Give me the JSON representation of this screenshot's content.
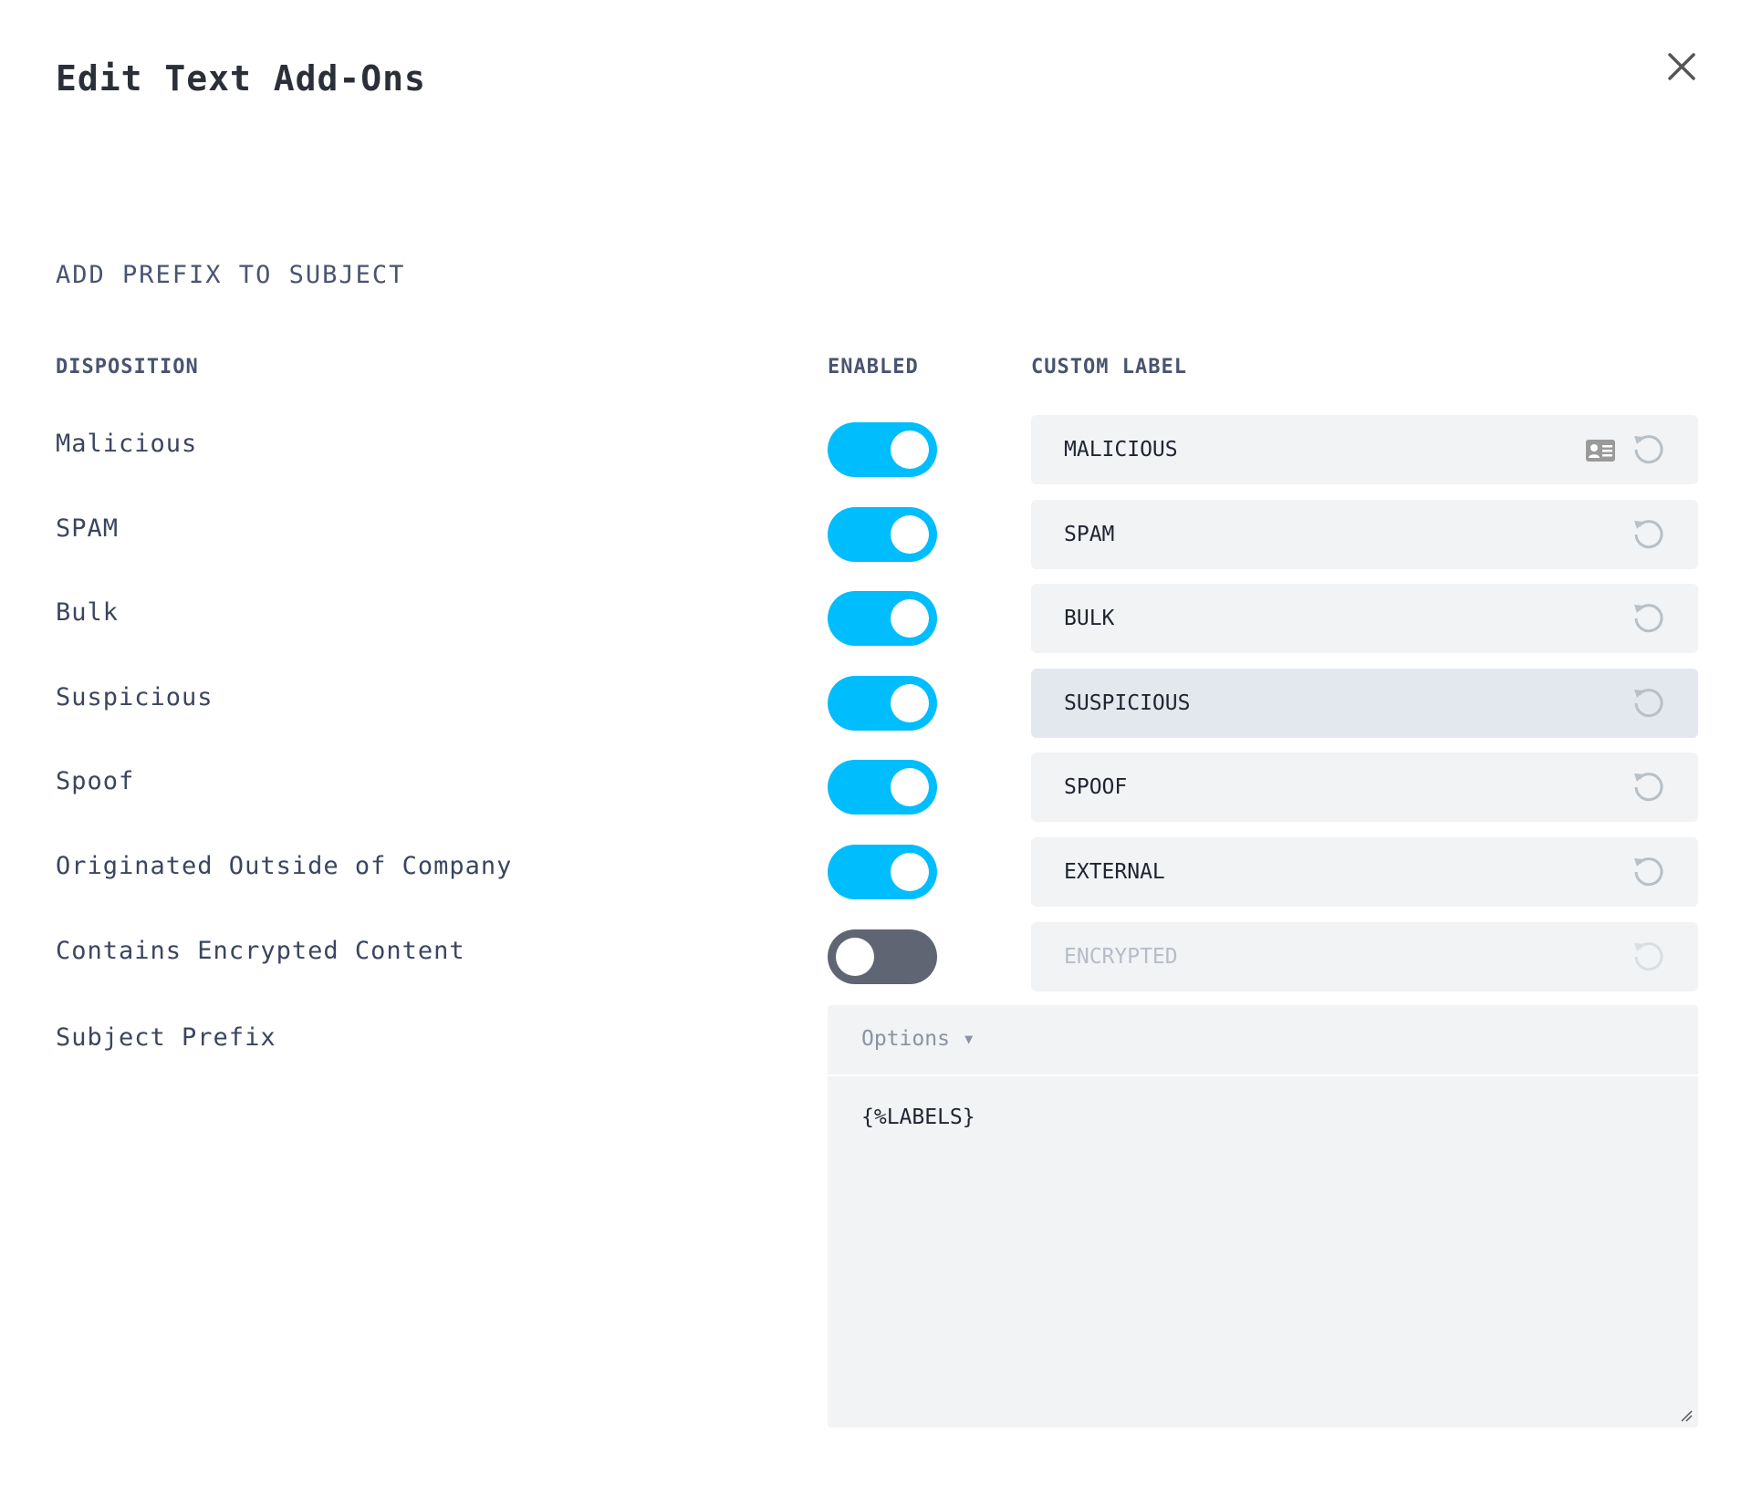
{
  "dialog": {
    "title": "Edit Text Add-Ons",
    "close_icon": "close-icon"
  },
  "section": {
    "title": "ADD PREFIX TO SUBJECT"
  },
  "columns": {
    "disposition": "DISPOSITION",
    "enabled": "ENABLED",
    "custom_label": "CUSTOM LABEL"
  },
  "colors": {
    "toggle_on": "#00bdfd",
    "toggle_off": "#5f6573"
  },
  "rows": [
    {
      "disposition": "Malicious",
      "enabled": true,
      "label": "MALICIOUS",
      "has_card_icon": true
    },
    {
      "disposition": "SPAM",
      "enabled": true,
      "label": "SPAM"
    },
    {
      "disposition": "Bulk",
      "enabled": true,
      "label": "BULK"
    },
    {
      "disposition": "Suspicious",
      "enabled": true,
      "label": "SUSPICIOUS"
    },
    {
      "disposition": "Spoof",
      "enabled": true,
      "label": "SPOOF"
    },
    {
      "disposition": "Originated Outside of Company",
      "enabled": true,
      "label": "EXTERNAL"
    },
    {
      "disposition": "Contains Encrypted Content",
      "enabled": false,
      "label": "ENCRYPTED"
    }
  ],
  "subject_prefix": {
    "label": "Subject Prefix",
    "options_label": "Options ▾",
    "value": "{%LABELS}"
  }
}
